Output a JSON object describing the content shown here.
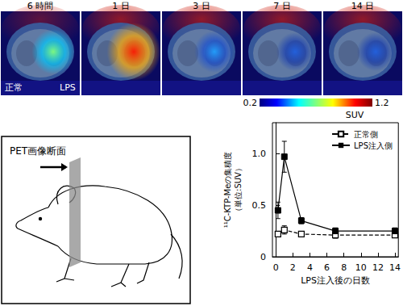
{
  "chart_data": {
    "type": "line",
    "xlabel": "LPS注入後の日数",
    "ylabel": "¹¹C-KTP-Meの集積度\n（単位:SUV）",
    "x": [
      0.25,
      1,
      3,
      7,
      14
    ],
    "series": [
      {
        "name": "正常側",
        "color": "#000000",
        "marker": "square_open",
        "line_style": "dashed",
        "values": [
          0.22,
          0.26,
          0.22,
          0.21,
          0.21
        ],
        "errors": [
          0.02,
          0.04,
          0.02,
          0.03,
          0.02
        ]
      },
      {
        "name": "LPS注入側",
        "color": "#000000",
        "marker": "square",
        "line_style": "solid",
        "values": [
          0.45,
          0.97,
          0.35,
          0.25,
          0.25
        ],
        "errors": [
          0.08,
          0.15,
          0.03,
          0.03,
          0.03
        ]
      }
    ],
    "xlim": [
      -0.4,
      14.4
    ],
    "xticks": [
      0,
      2,
      4,
      6,
      8,
      10,
      12,
      14
    ],
    "ylim": [
      0,
      1.3
    ],
    "yticks": [
      0,
      0.5,
      {
        "value": 1,
        "label": "1.0"
      }
    ],
    "grid": false,
    "legend": "upper right"
  },
  "pet_images": {
    "time_labels": [
      "6 時間",
      "1 日",
      "3 日",
      "7 日",
      "14 日"
    ],
    "left_label": "正常",
    "right_label": "LPS",
    "colorbar": {
      "range": [
        0.2,
        1.2
      ],
      "ticks": [
        0.2,
        1.2
      ],
      "label": "SUV"
    }
  },
  "diagram": {
    "label": "PET画像断面"
  }
}
